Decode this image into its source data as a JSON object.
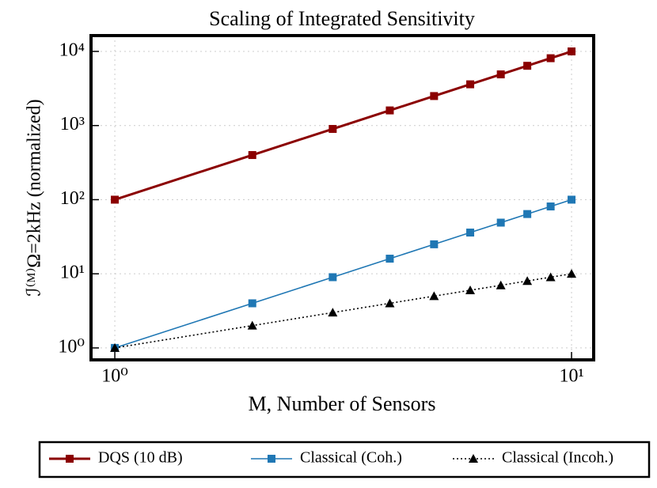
{
  "chart_data": {
    "type": "line",
    "title": "Scaling of Integrated Sensitivity",
    "x_label": "M, Number of Sensors",
    "y_label": "ℐ⁽ᴹ⁾Ω=2kHz (normalized)",
    "x": [
      1,
      2,
      3,
      4,
      5,
      6,
      7,
      8,
      9,
      10
    ],
    "series": [
      {
        "name": "DQS (10 dB)",
        "color": "#8b0000",
        "marker": "square",
        "linestyle": "solid",
        "values": [
          100,
          400,
          900,
          1600,
          2500,
          3600,
          4900,
          6400,
          8100,
          10000
        ]
      },
      {
        "name": "Classical (Coh.)",
        "color": "#1f77b4",
        "marker": "square",
        "linestyle": "solid",
        "values": [
          1,
          4,
          9,
          16,
          25,
          36,
          49,
          64,
          81,
          100
        ]
      },
      {
        "name": "Classical (Incoh.)",
        "color": "#000000",
        "marker": "triangle",
        "linestyle": "dotted",
        "values": [
          1,
          2,
          3,
          4,
          5,
          6,
          7,
          8,
          9,
          10
        ]
      }
    ],
    "xscale": "log",
    "yscale": "log",
    "xlim": [
      0.887,
      11.18
    ],
    "ylim": [
      0.69,
      16350
    ],
    "xticks": [
      {
        "value": 1,
        "label": "10⁰"
      },
      {
        "value": 10,
        "label": "10¹"
      }
    ],
    "yticks": [
      {
        "value": 1,
        "label": "10⁰"
      },
      {
        "value": 10,
        "label": "10¹"
      },
      {
        "value": 100,
        "label": "10²"
      },
      {
        "value": 1000,
        "label": "10³"
      },
      {
        "value": 10000,
        "label": "10⁴"
      }
    ],
    "grid": true,
    "legend": "bottom"
  }
}
